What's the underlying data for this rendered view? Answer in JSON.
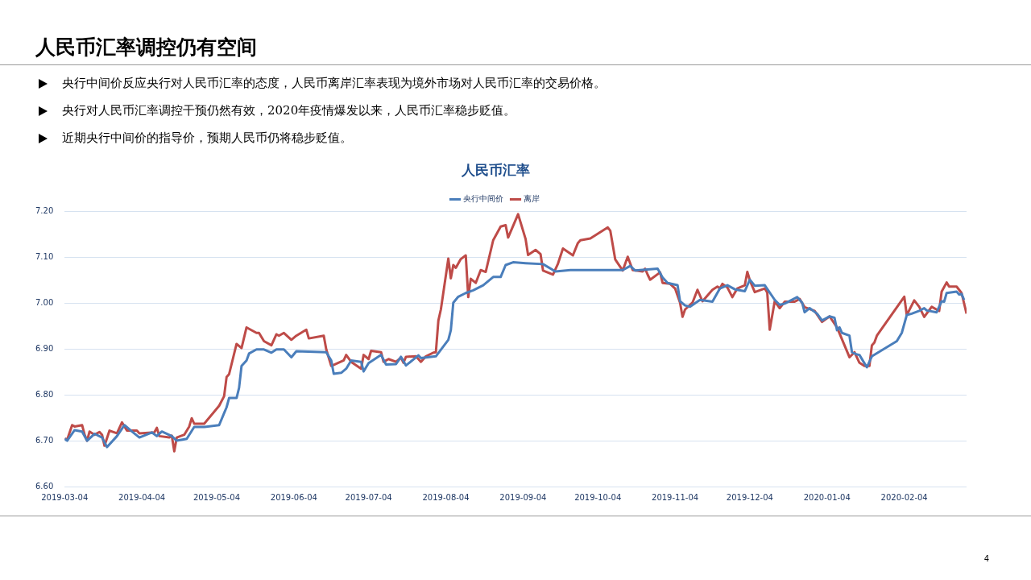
{
  "chart_data": {
    "type": "line",
    "title": "人民币汇率",
    "annotations": [
      "人民币汇率调控仍有空间",
      "央行中间价反应央行对人民币汇率的态度，人民币离岸汇率表现为境外市场对人民币汇率的交易价格。",
      "央行对人民币汇率调控干预仍然有效，2020年疫情爆发以来，人民币汇率稳步贬值。",
      "近期央行中间价的指导价，预期人民币仍将稳步贬值。",
      "4"
    ],
    "legend": "top",
    "grid": "y",
    "marker": "none",
    "line_style": "solid",
    "xlim": [
      "2019-03-04",
      "2020-02-29"
    ],
    "xticks": [
      "2019-03-04",
      "2019-04-04",
      "2019-05-04",
      "2019-06-04",
      "2019-07-04",
      "2019-08-04",
      "2019-09-04",
      "2019-10-04",
      "2019-11-04",
      "2019-12-04",
      "2020-01-04",
      "2020-02-04"
    ],
    "ylim": [
      6.6,
      7.2
    ],
    "yticks": [
      {
        "value": 6.6,
        "label": "6.60"
      },
      {
        "value": 6.7,
        "label": "6.70"
      },
      {
        "value": 6.8,
        "label": "6.80"
      },
      {
        "value": 6.9,
        "label": "6.90"
      },
      {
        "value": 7.0,
        "label": "7.00"
      },
      {
        "value": 7.1,
        "label": "7.10"
      },
      {
        "value": 7.2,
        "label": "7.20"
      }
    ],
    "series": [
      {
        "name": "央行中间价",
        "color": "#4a7ebb",
        "x": [
          "2019-03-04",
          "2019-03-05",
          "2019-03-08",
          "2019-03-11",
          "2019-03-13",
          "2019-03-16",
          "2019-03-19",
          "2019-03-21",
          "2019-03-25",
          "2019-03-28",
          "2019-03-31",
          "2019-04-03",
          "2019-04-08",
          "2019-04-10",
          "2019-04-12",
          "2019-04-16",
          "2019-04-18",
          "2019-04-22",
          "2019-04-25",
          "2019-04-29",
          "2019-05-05",
          "2019-05-07",
          "2019-05-08",
          "2019-05-09",
          "2019-05-12",
          "2019-05-13",
          "2019-05-14",
          "2019-05-16",
          "2019-05-17",
          "2019-05-20",
          "2019-05-23",
          "2019-05-26",
          "2019-05-28",
          "2019-05-31",
          "2019-06-03",
          "2019-06-05",
          "2019-06-17",
          "2019-06-19",
          "2019-06-20",
          "2019-06-23",
          "2019-06-25",
          "2019-06-27",
          "2019-07-01",
          "2019-07-02",
          "2019-07-04",
          "2019-07-09",
          "2019-07-11",
          "2019-07-15",
          "2019-07-17",
          "2019-07-19",
          "2019-07-24",
          "2019-07-25",
          "2019-07-31",
          "2019-08-05",
          "2019-08-06",
          "2019-08-07",
          "2019-08-09",
          "2019-08-12",
          "2019-08-15",
          "2019-08-19",
          "2019-08-23",
          "2019-08-26",
          "2019-08-28",
          "2019-08-31",
          "2019-09-05",
          "2019-09-12",
          "2019-09-17",
          "2019-09-23",
          "2019-10-14",
          "2019-10-17",
          "2019-10-19",
          "2019-10-28",
          "2019-10-30",
          "2019-11-01",
          "2019-11-05",
          "2019-11-06",
          "2019-11-08",
          "2019-11-10",
          "2019-11-14",
          "2019-11-19",
          "2019-11-22",
          "2019-11-25",
          "2019-11-28",
          "2019-12-02",
          "2019-12-04",
          "2019-12-06",
          "2019-12-10",
          "2019-12-14",
          "2019-12-16",
          "2019-12-18",
          "2019-12-23",
          "2019-12-25",
          "2019-12-26",
          "2019-12-28",
          "2019-12-31",
          "2020-01-02",
          "2020-01-05",
          "2020-01-07",
          "2020-01-08",
          "2020-01-09",
          "2020-01-10",
          "2020-01-13",
          "2020-01-14",
          "2020-01-16",
          "2020-01-17",
          "2020-01-20",
          "2020-01-22",
          "2020-02-01",
          "2020-02-03",
          "2020-02-05",
          "2020-02-07",
          "2020-02-10",
          "2020-02-12",
          "2020-02-13",
          "2020-02-17",
          "2020-02-19",
          "2020-02-20",
          "2020-02-21",
          "2020-02-25",
          "2020-02-26",
          "2020-02-27",
          "2020-02-28"
        ],
        "values": [
          6.704,
          6.7,
          6.723,
          6.72,
          6.7,
          6.715,
          6.707,
          6.686,
          6.71,
          6.734,
          6.72,
          6.707,
          6.718,
          6.71,
          6.72,
          6.71,
          6.7,
          6.704,
          6.73,
          6.73,
          6.734,
          6.76,
          6.773,
          6.793,
          6.793,
          6.815,
          6.863,
          6.875,
          6.89,
          6.899,
          6.899,
          6.892,
          6.899,
          6.899,
          6.882,
          6.895,
          6.893,
          6.875,
          6.846,
          6.848,
          6.857,
          6.875,
          6.872,
          6.851,
          6.869,
          6.887,
          6.866,
          6.867,
          6.883,
          6.864,
          6.886,
          6.88,
          6.884,
          6.92,
          6.941,
          7.001,
          7.014,
          7.022,
          7.028,
          7.039,
          7.057,
          7.057,
          7.083,
          7.089,
          7.087,
          7.085,
          7.069,
          7.072,
          7.072,
          7.081,
          7.071,
          7.075,
          7.056,
          7.044,
          7.039,
          7.004,
          6.995,
          6.992,
          7.007,
          7.003,
          7.032,
          7.039,
          7.03,
          7.026,
          7.051,
          7.038,
          7.039,
          7.007,
          6.996,
          6.999,
          7.013,
          7.001,
          6.98,
          6.989,
          6.977,
          6.962,
          6.971,
          6.968,
          6.941,
          6.947,
          6.935,
          6.929,
          6.893,
          6.888,
          6.887,
          6.86,
          6.884,
          6.917,
          6.935,
          6.974,
          6.977,
          6.983,
          6.989,
          6.984,
          6.98,
          7.004,
          7.003,
          7.022,
          7.025,
          7.019,
          7.02,
          7.007
        ]
      },
      {
        "name": "离岸",
        "color": "#be4b48",
        "x": [
          "2019-03-04",
          "2019-03-05",
          "2019-03-07",
          "2019-03-08",
          "2019-03-11",
          "2019-03-12",
          "2019-03-13",
          "2019-03-14",
          "2019-03-16",
          "2019-03-18",
          "2019-03-19",
          "2019-03-20",
          "2019-03-22",
          "2019-03-25",
          "2019-03-27",
          "2019-03-29",
          "2019-04-02",
          "2019-04-03",
          "2019-04-09",
          "2019-04-10",
          "2019-04-11",
          "2019-04-15",
          "2019-04-16",
          "2019-04-17",
          "2019-04-18",
          "2019-04-21",
          "2019-04-23",
          "2019-04-24",
          "2019-04-25",
          "2019-04-29",
          "2019-05-05",
          "2019-05-07",
          "2019-05-08",
          "2019-05-09",
          "2019-05-12",
          "2019-05-14",
          "2019-05-16",
          "2019-05-20",
          "2019-05-21",
          "2019-05-23",
          "2019-05-26",
          "2019-05-28",
          "2019-05-29",
          "2019-05-31",
          "2019-06-03",
          "2019-06-05",
          "2019-06-09",
          "2019-06-10",
          "2019-06-16",
          "2019-06-17",
          "2019-06-19",
          "2019-06-24",
          "2019-06-25",
          "2019-06-27",
          "2019-07-01",
          "2019-07-02",
          "2019-07-04",
          "2019-07-05",
          "2019-07-09",
          "2019-07-10",
          "2019-07-12",
          "2019-07-15",
          "2019-07-17",
          "2019-07-18",
          "2019-07-19",
          "2019-07-23",
          "2019-07-25",
          "2019-07-27",
          "2019-07-30",
          "2019-07-31",
          "2019-08-01",
          "2019-08-02",
          "2019-08-05",
          "2019-08-06",
          "2019-08-07",
          "2019-08-08",
          "2019-08-10",
          "2019-08-12",
          "2019-08-13",
          "2019-08-14",
          "2019-08-16",
          "2019-08-18",
          "2019-08-20",
          "2019-08-23",
          "2019-08-26",
          "2019-08-28",
          "2019-08-29",
          "2019-09-02",
          "2019-09-05",
          "2019-09-06",
          "2019-09-09",
          "2019-09-11",
          "2019-09-12",
          "2019-09-16",
          "2019-09-18",
          "2019-09-20",
          "2019-09-24",
          "2019-09-26",
          "2019-09-27",
          "2019-10-01",
          "2019-10-08",
          "2019-10-09",
          "2019-10-11",
          "2019-10-14",
          "2019-10-16",
          "2019-10-18",
          "2019-10-22",
          "2019-10-23",
          "2019-10-24",
          "2019-10-25",
          "2019-10-29",
          "2019-10-30",
          "2019-11-02",
          "2019-11-04",
          "2019-11-06",
          "2019-11-07",
          "2019-11-08",
          "2019-11-11",
          "2019-11-13",
          "2019-11-15",
          "2019-11-19",
          "2019-11-21",
          "2019-11-22",
          "2019-11-23",
          "2019-11-25",
          "2019-11-27",
          "2019-11-29",
          "2019-12-02",
          "2019-12-03",
          "2019-12-04",
          "2019-12-06",
          "2019-12-10",
          "2019-12-11",
          "2019-12-12",
          "2019-12-14",
          "2019-12-16",
          "2019-12-18",
          "2019-12-22",
          "2019-12-24",
          "2019-12-26",
          "2019-12-30",
          "2020-01-02",
          "2020-01-05",
          "2020-01-08",
          "2020-01-13",
          "2020-01-15",
          "2020-01-17",
          "2020-01-19",
          "2020-01-21",
          "2020-01-22",
          "2020-01-23",
          "2020-01-24",
          "2020-02-04",
          "2020-02-05",
          "2020-02-08",
          "2020-02-10",
          "2020-02-12",
          "2020-02-15",
          "2020-02-18",
          "2020-02-19",
          "2020-02-21",
          "2020-02-22",
          "2020-02-25",
          "2020-02-27",
          "2020-02-29"
        ],
        "values": [
          6.705,
          6.702,
          6.734,
          6.731,
          6.734,
          6.713,
          6.7,
          6.72,
          6.713,
          6.719,
          6.713,
          6.689,
          6.722,
          6.716,
          6.74,
          6.722,
          6.722,
          6.716,
          6.718,
          6.728,
          6.71,
          6.707,
          6.711,
          6.677,
          6.707,
          6.713,
          6.731,
          6.749,
          6.737,
          6.737,
          6.776,
          6.797,
          6.839,
          6.845,
          6.911,
          6.902,
          6.947,
          6.935,
          6.935,
          6.917,
          6.908,
          6.932,
          6.929,
          6.935,
          6.92,
          6.929,
          6.942,
          6.923,
          6.929,
          6.899,
          6.863,
          6.875,
          6.887,
          6.872,
          6.857,
          6.887,
          6.878,
          6.896,
          6.893,
          6.872,
          6.878,
          6.872,
          6.881,
          6.87,
          6.883,
          6.884,
          6.872,
          6.884,
          6.892,
          6.893,
          6.962,
          6.986,
          7.097,
          7.054,
          7.083,
          7.077,
          7.096,
          7.104,
          7.013,
          7.053,
          7.044,
          7.072,
          7.068,
          7.137,
          7.167,
          7.17,
          7.143,
          7.194,
          7.14,
          7.105,
          7.116,
          7.107,
          7.071,
          7.062,
          7.086,
          7.119,
          7.104,
          7.131,
          7.137,
          7.141,
          7.165,
          7.158,
          7.095,
          7.071,
          7.101,
          7.072,
          7.069,
          7.075,
          7.062,
          7.051,
          7.067,
          7.044,
          7.042,
          7.032,
          7.001,
          6.97,
          6.986,
          7.001,
          7.029,
          7.004,
          7.029,
          7.036,
          7.032,
          7.042,
          7.034,
          7.013,
          7.032,
          7.039,
          7.068,
          7.05,
          7.024,
          7.032,
          7.023,
          6.942,
          7.004,
          6.989,
          7.003,
          7.003,
          7.009,
          6.991,
          6.983,
          6.959,
          6.971,
          6.947,
          6.882,
          6.893,
          6.87,
          6.863,
          6.863,
          6.908,
          6.914,
          6.929,
          7.014,
          6.974,
          7.006,
          6.992,
          6.97,
          6.992,
          6.983,
          7.025,
          7.045,
          7.036,
          7.036,
          7.022,
          6.977
        ]
      }
    ]
  }
}
